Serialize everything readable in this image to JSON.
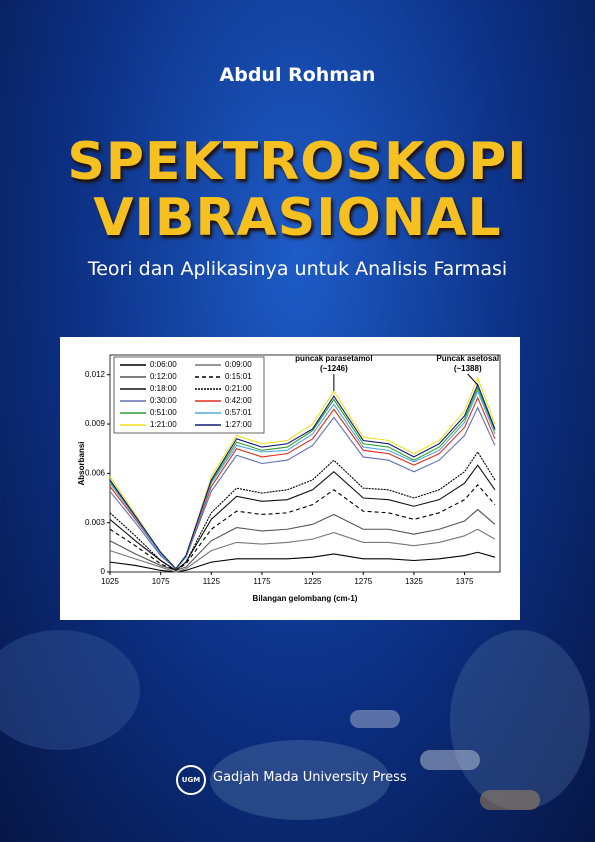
{
  "author": "Abdul Rohman",
  "title": [
    "SPEKTROSKOPI",
    "VIBRASIONAL"
  ],
  "subtitle": "Teori dan Aplikasinya untuk Analisis Farmasi",
  "publisher": {
    "logo": "UGM",
    "name": "Gadjah Mada University Press"
  },
  "chart_data": {
    "type": "line",
    "xlabel": "Bilangan gelombang (cm-1)",
    "ylabel": "Absorbansi",
    "annotations": [
      "puncak parasetamol",
      "(~1246)",
      "Puncak asetosal",
      "(~1388)"
    ],
    "x": [
      1025,
      1050,
      1075,
      1090,
      1100,
      1125,
      1150,
      1175,
      1200,
      1225,
      1246,
      1275,
      1300,
      1325,
      1350,
      1375,
      1388,
      1405
    ],
    "xlim": [
      1025,
      1410
    ],
    "xticks": [
      1025,
      1075,
      1125,
      1175,
      1225,
      1275,
      1325,
      1375
    ],
    "ylim": [
      0,
      0.0132
    ],
    "yticks": [
      0,
      0.003,
      0.006,
      0.009,
      0.012
    ],
    "series": [
      {
        "name": "0:06:00",
        "color": "#000000",
        "values": [
          0.0006,
          0.0004,
          0.0001,
          0,
          0.0001,
          0.0006,
          0.0008,
          0.0008,
          0.0008,
          0.0009,
          0.0011,
          0.0008,
          0.0008,
          0.0007,
          0.0008,
          0.001,
          0.0012,
          0.0009
        ]
      },
      {
        "name": "0:09:00",
        "color": "#777777",
        "values": [
          0.0013,
          0.0008,
          0.0003,
          0,
          0.0002,
          0.0013,
          0.0018,
          0.0017,
          0.0018,
          0.002,
          0.0024,
          0.0018,
          0.0018,
          0.0016,
          0.0018,
          0.0022,
          0.0026,
          0.002
        ]
      },
      {
        "name": "0:12:00",
        "color": "#555555",
        "values": [
          0.0019,
          0.0011,
          0.0004,
          0.0001,
          0.0003,
          0.0019,
          0.0027,
          0.0025,
          0.0026,
          0.0029,
          0.0035,
          0.0026,
          0.0026,
          0.0023,
          0.0026,
          0.0031,
          0.0038,
          0.0029
        ]
      },
      {
        "name": "0:15:01",
        "color": "#000000",
        "dash": "4 3",
        "values": [
          0.0026,
          0.0016,
          0.0005,
          0.0001,
          0.0005,
          0.0026,
          0.0037,
          0.0035,
          0.0036,
          0.0041,
          0.005,
          0.0037,
          0.0036,
          0.0032,
          0.0036,
          0.0044,
          0.0053,
          0.0041
        ]
      },
      {
        "name": "0:18:00",
        "color": "#111111",
        "values": [
          0.0032,
          0.0019,
          0.0007,
          0.0001,
          0.0006,
          0.0032,
          0.0046,
          0.0043,
          0.0044,
          0.005,
          0.0061,
          0.0045,
          0.0044,
          0.004,
          0.0044,
          0.0054,
          0.0065,
          0.005
        ]
      },
      {
        "name": "0:21:00",
        "color": "#000000",
        "dash": "2 1",
        "values": [
          0.0036,
          0.0022,
          0.0007,
          0.0001,
          0.0006,
          0.0036,
          0.0051,
          0.0048,
          0.005,
          0.0056,
          0.0068,
          0.0051,
          0.005,
          0.0045,
          0.005,
          0.0061,
          0.0073,
          0.0056
        ]
      },
      {
        "name": "0:30:00",
        "color": "#6070b0",
        "values": [
          0.0049,
          0.003,
          0.001,
          0.0002,
          0.0009,
          0.0049,
          0.0071,
          0.0066,
          0.0068,
          0.0077,
          0.0094,
          0.007,
          0.0068,
          0.0061,
          0.0068,
          0.0083,
          0.01,
          0.0077
        ]
      },
      {
        "name": "0:42:00",
        "color": "#e03020",
        "values": [
          0.0052,
          0.0032,
          0.0011,
          0.0002,
          0.0009,
          0.0052,
          0.0075,
          0.007,
          0.0072,
          0.0081,
          0.0099,
          0.0074,
          0.0072,
          0.0065,
          0.0072,
          0.0088,
          0.0106,
          0.0081
        ]
      },
      {
        "name": "0:51:00",
        "color": "#30a030",
        "values": [
          0.0055,
          0.0033,
          0.0011,
          0.0002,
          0.001,
          0.0055,
          0.0079,
          0.0074,
          0.0076,
          0.0086,
          0.0105,
          0.0078,
          0.0076,
          0.0068,
          0.0076,
          0.0093,
          0.0112,
          0.0086
        ]
      },
      {
        "name": "0:57:01",
        "color": "#50a8e0",
        "values": [
          0.0054,
          0.0033,
          0.0011,
          0.0002,
          0.0009,
          0.0054,
          0.0077,
          0.0073,
          0.0074,
          0.0084,
          0.0102,
          0.0076,
          0.0074,
          0.0067,
          0.0074,
          0.0091,
          0.011,
          0.0084
        ]
      },
      {
        "name": "1:21:00",
        "color": "#f0e020",
        "values": [
          0.0058,
          0.0035,
          0.0012,
          0.0002,
          0.001,
          0.0058,
          0.0083,
          0.0078,
          0.008,
          0.009,
          0.011,
          0.0082,
          0.008,
          0.0072,
          0.008,
          0.0098,
          0.0118,
          0.009
        ]
      },
      {
        "name": "1:27:00",
        "color": "#101870",
        "values": [
          0.0056,
          0.0034,
          0.0012,
          0.0002,
          0.001,
          0.0056,
          0.0081,
          0.0076,
          0.0078,
          0.0087,
          0.0107,
          0.008,
          0.0078,
          0.007,
          0.0078,
          0.0095,
          0.0114,
          0.0087
        ]
      }
    ]
  }
}
